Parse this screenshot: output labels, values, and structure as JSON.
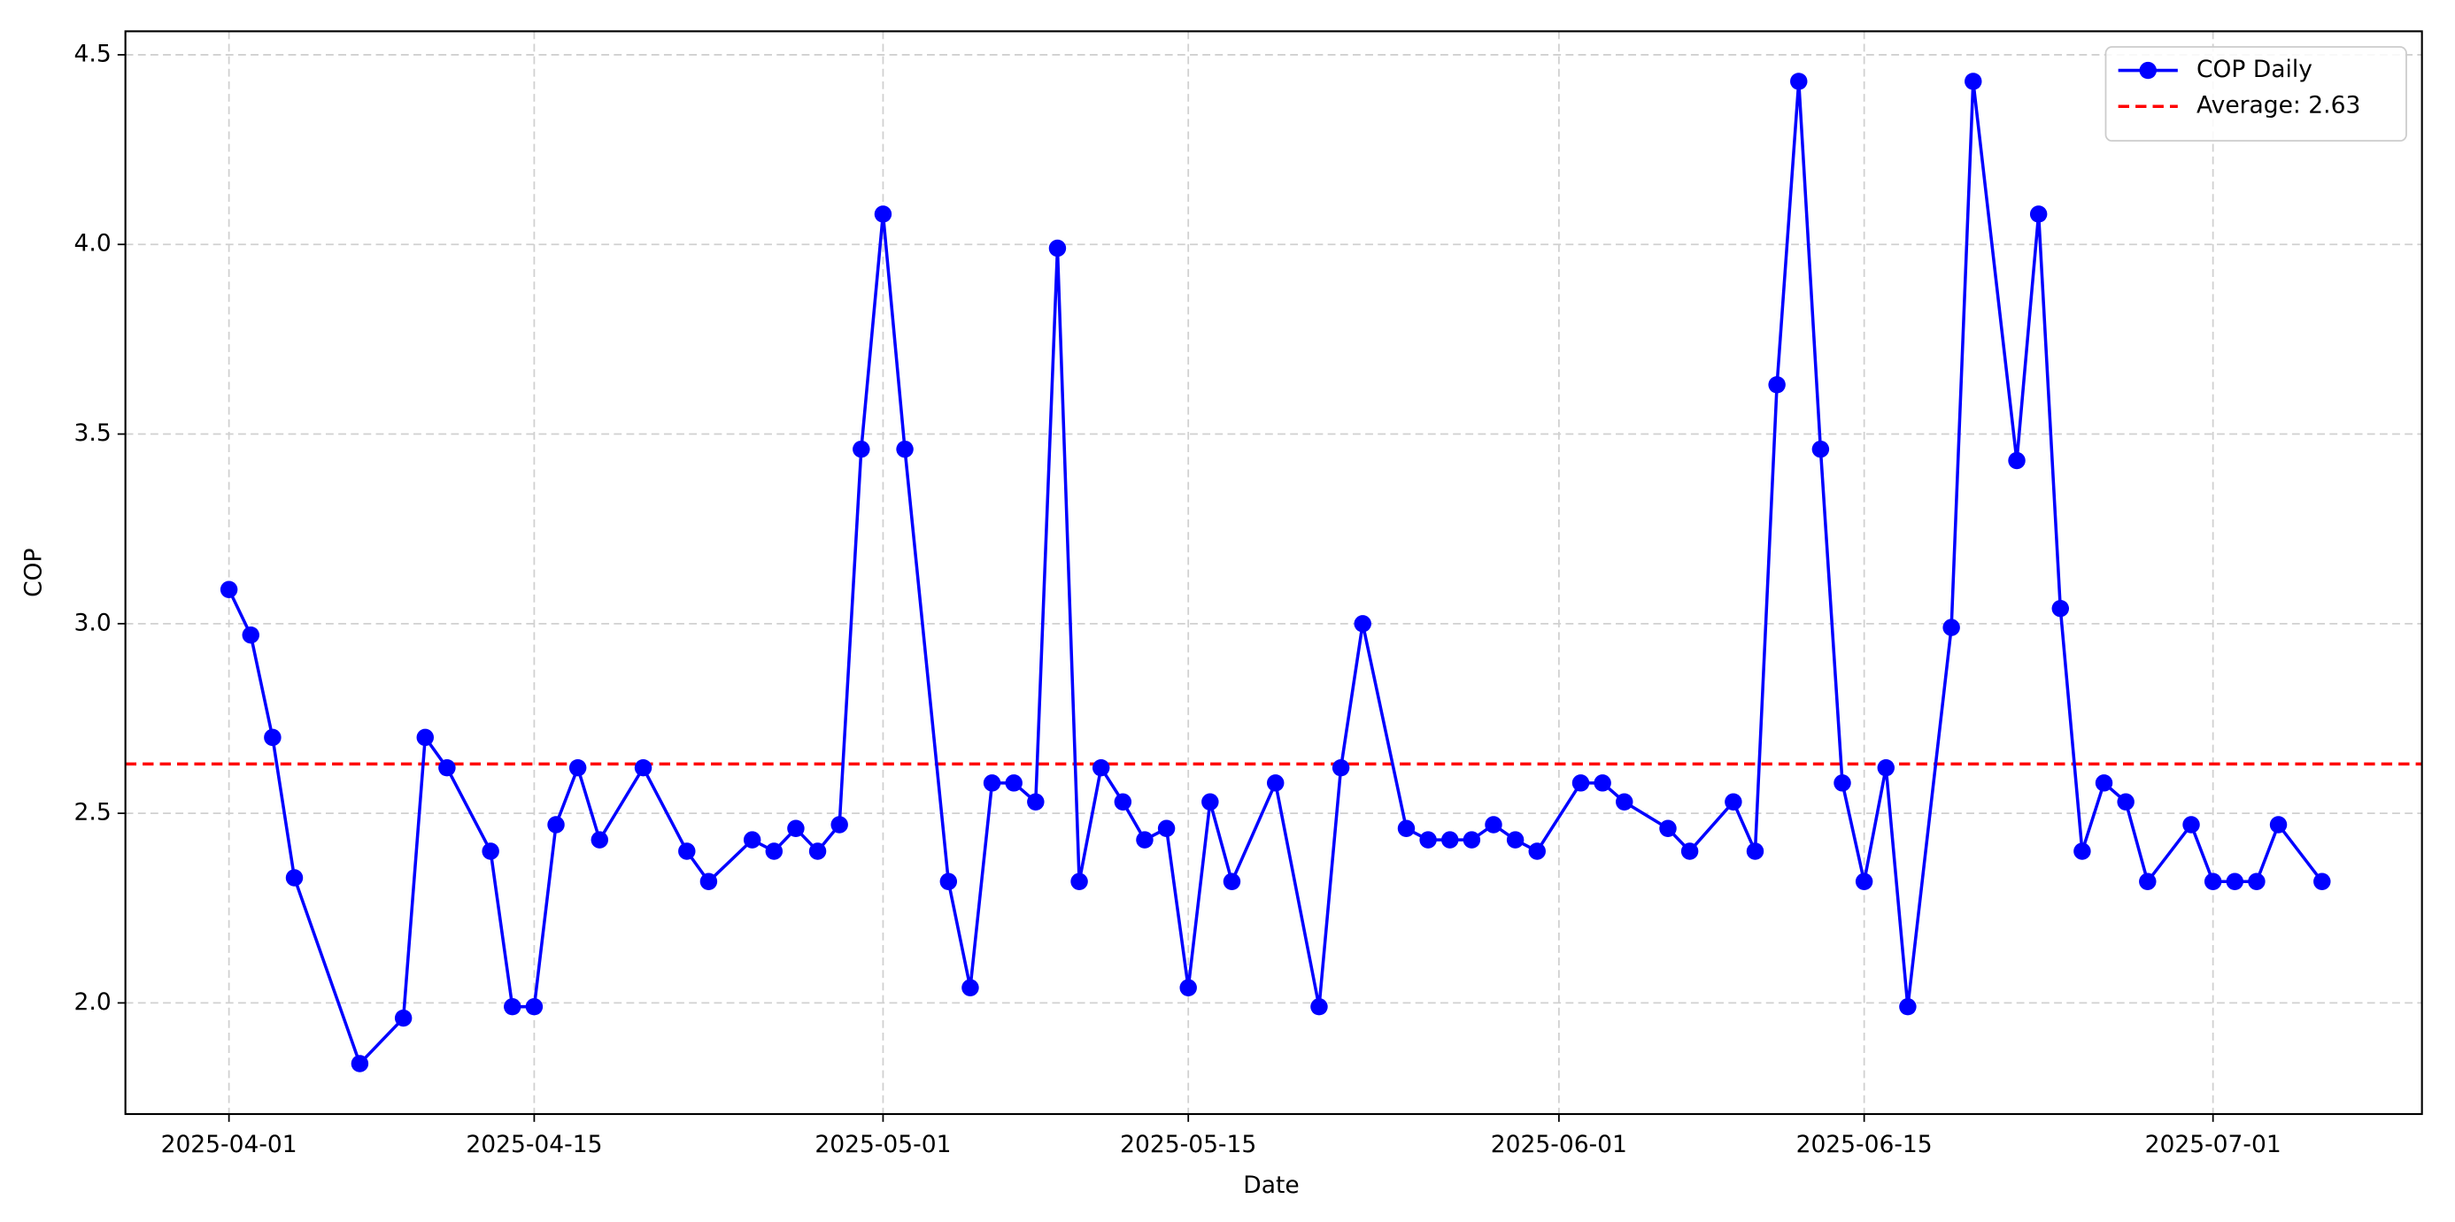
{
  "chart_data": {
    "type": "line",
    "xlabel": "Date",
    "ylabel": "COP",
    "x": [
      "2025-04-01",
      "2025-04-02",
      "2025-04-03",
      "2025-04-04",
      "2025-04-07",
      "2025-04-09",
      "2025-04-10",
      "2025-04-11",
      "2025-04-13",
      "2025-04-14",
      "2025-04-15",
      "2025-04-16",
      "2025-04-17",
      "2025-04-18",
      "2025-04-20",
      "2025-04-22",
      "2025-04-23",
      "2025-04-25",
      "2025-04-26",
      "2025-04-27",
      "2025-04-28",
      "2025-04-29",
      "2025-04-30",
      "2025-05-01",
      "2025-05-02",
      "2025-05-04",
      "2025-05-05",
      "2025-05-06",
      "2025-05-07",
      "2025-05-08",
      "2025-05-09",
      "2025-05-10",
      "2025-05-11",
      "2025-05-12",
      "2025-05-13",
      "2025-05-14",
      "2025-05-15",
      "2025-05-16",
      "2025-05-17",
      "2025-05-19",
      "2025-05-21",
      "2025-05-22",
      "2025-05-23",
      "2025-05-25",
      "2025-05-26",
      "2025-05-27",
      "2025-05-28",
      "2025-05-29",
      "2025-05-30",
      "2025-05-31",
      "2025-06-02",
      "2025-06-03",
      "2025-06-04",
      "2025-06-06",
      "2025-06-07",
      "2025-06-09",
      "2025-06-10",
      "2025-06-11",
      "2025-06-12",
      "2025-06-13",
      "2025-06-14",
      "2025-06-15",
      "2025-06-16",
      "2025-06-17",
      "2025-06-19",
      "2025-06-20",
      "2025-06-22",
      "2025-06-23",
      "2025-06-24",
      "2025-06-25",
      "2025-06-26",
      "2025-06-27",
      "2025-06-28",
      "2025-06-30",
      "2025-07-01",
      "2025-07-02",
      "2025-07-03",
      "2025-07-04",
      "2025-07-06"
    ],
    "series": [
      {
        "name": "COP Daily",
        "color": "#0000ff",
        "marker": "circle",
        "values": [
          3.09,
          2.97,
          2.7,
          2.33,
          1.84,
          1.96,
          2.7,
          2.62,
          2.4,
          1.99,
          1.99,
          2.47,
          2.62,
          2.43,
          2.62,
          2.4,
          2.32,
          2.43,
          2.4,
          2.46,
          2.4,
          2.47,
          3.46,
          4.08,
          3.46,
          2.32,
          2.04,
          2.58,
          2.58,
          2.53,
          3.99,
          2.32,
          2.62,
          2.53,
          2.43,
          2.46,
          2.04,
          2.53,
          2.32,
          2.58,
          1.99,
          2.62,
          3.0,
          2.46,
          2.43,
          2.43,
          2.43,
          2.47,
          2.43,
          2.4,
          2.58,
          2.58,
          2.53,
          2.46,
          2.4,
          2.53,
          2.4,
          3.63,
          4.43,
          3.46,
          2.58,
          2.32,
          2.62,
          1.99,
          2.99,
          4.43,
          3.43,
          4.08,
          3.04,
          2.4,
          2.58,
          2.53,
          2.32,
          2.47,
          2.32,
          2.32,
          2.32,
          2.47,
          2.32
        ]
      }
    ],
    "reference_line": {
      "name": "Average: 2.63",
      "value": 2.63,
      "color": "#ff0000",
      "style": "dashed"
    },
    "xlim": [
      "2025-03-27T06:00",
      "2025-07-10T14:00"
    ],
    "xticks": [
      "2025-04-01",
      "2025-04-15",
      "2025-05-01",
      "2025-05-15",
      "2025-06-01",
      "2025-06-15",
      "2025-07-01"
    ],
    "ylim": [
      1.707,
      4.562
    ],
    "yticks": [
      {
        "value": 2,
        "label": "2.0"
      },
      {
        "value": 2.5,
        "label": "2.5"
      },
      {
        "value": 3,
        "label": "3.0"
      },
      {
        "value": 3.5,
        "label": "3.5"
      },
      {
        "value": 4,
        "label": "4.0"
      },
      {
        "value": 4.5,
        "label": "4.5"
      }
    ],
    "grid": true,
    "legend": "upper right"
  }
}
